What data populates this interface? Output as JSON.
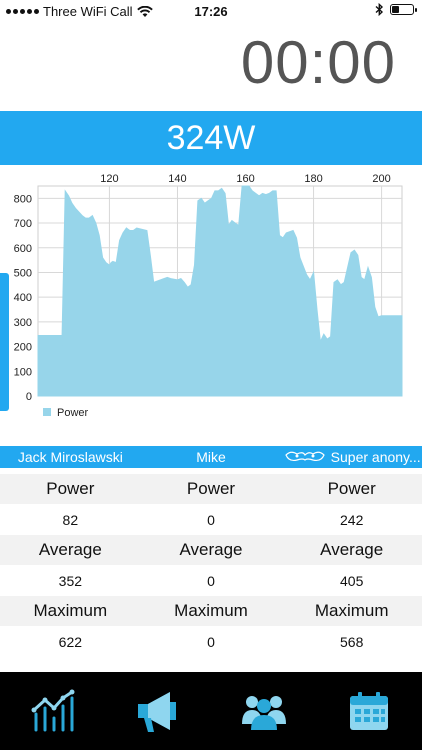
{
  "status_bar": {
    "carrier": "Three WiFi Call",
    "time": "17:26"
  },
  "timer": "00:00",
  "current_power": "324W",
  "chart_data": {
    "type": "area",
    "title": "",
    "xlabel": "",
    "ylabel": "",
    "xlim": [
      99,
      206
    ],
    "ylim": [
      0,
      850
    ],
    "x_ticks": [
      120,
      140,
      160,
      180,
      200
    ],
    "y_ticks": [
      0,
      100,
      200,
      300,
      400,
      500,
      600,
      700,
      800
    ],
    "grid": true,
    "legend_position": "bottom-left",
    "color": "#97d5ea",
    "series": [
      {
        "name": "Power",
        "x": [
          99,
          106,
          106,
          107,
          108,
          109,
          110,
          112,
          113,
          114,
          115,
          116,
          117,
          118,
          119,
          120,
          120.5,
          121,
          122,
          123,
          124,
          125,
          126,
          127,
          128,
          131,
          132,
          133,
          134,
          135,
          136,
          137,
          138,
          140,
          141,
          142,
          143,
          144,
          145,
          146,
          147,
          148,
          149,
          150,
          151,
          152,
          153,
          154,
          155,
          156,
          157,
          158,
          159,
          160,
          161,
          162,
          163,
          164,
          165,
          166,
          167,
          168,
          169,
          170,
          171,
          172,
          174,
          175,
          176,
          178,
          179,
          180,
          181,
          182,
          183,
          184,
          185,
          186,
          187,
          188,
          189,
          190,
          191,
          192,
          193,
          194,
          195,
          196,
          197,
          198,
          199,
          200,
          202,
          206
        ],
        "y": [
          245,
          245,
          195,
          830,
          810,
          780,
          760,
          730,
          720,
          720,
          730,
          700,
          650,
          560,
          540,
          530,
          540,
          545,
          540,
          630,
          660,
          680,
          670,
          670,
          680,
          670,
          570,
          460,
          465,
          470,
          475,
          480,
          475,
          470,
          475,
          460,
          440,
          450,
          530,
          790,
          800,
          780,
          790,
          800,
          830,
          830,
          840,
          820,
          690,
          710,
          700,
          690,
          860,
          870,
          850,
          830,
          820,
          810,
          820,
          815,
          820,
          830,
          830,
          650,
          640,
          660,
          670,
          640,
          560,
          490,
          470,
          500,
          350,
          220,
          250,
          230,
          240,
          460,
          470,
          450,
          460,
          520,
          580,
          590,
          570,
          480,
          470,
          520,
          480,
          360,
          320,
          325,
          325,
          325
        ]
      }
    ]
  },
  "riders": [
    {
      "name": "Jack Miroslawski"
    },
    {
      "name": "Mike"
    },
    {
      "name": "Super anony...",
      "icon": "mask-icon"
    }
  ],
  "stats": [
    {
      "label": "Power",
      "values": [
        "82",
        "0",
        "242"
      ]
    },
    {
      "label": "Average",
      "values": [
        "352",
        "0",
        "405"
      ]
    },
    {
      "label": "Maximum",
      "values": [
        "622",
        "0",
        "568"
      ]
    }
  ],
  "tabs": [
    {
      "icon": "chart-icon"
    },
    {
      "icon": "megaphone-icon"
    },
    {
      "icon": "group-icon"
    },
    {
      "icon": "calendar-icon"
    }
  ]
}
